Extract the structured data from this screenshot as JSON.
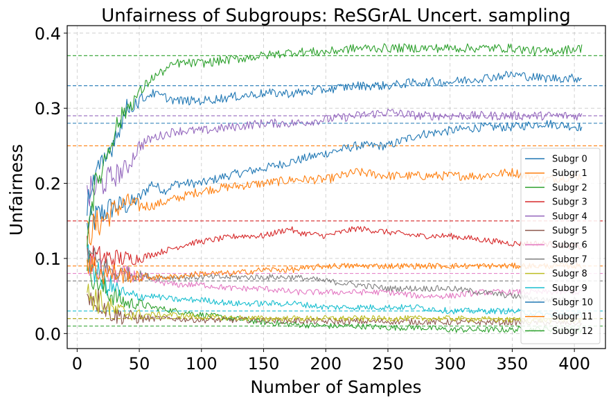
{
  "chart_data": {
    "type": "line",
    "title": "Unfairness of Subgroups: ReSGrAL Uncert. sampling",
    "xlabel": "Number of Samples",
    "ylabel": "Unfairness",
    "xlim": [
      -8,
      425
    ],
    "ylim": [
      -0.02,
      0.41
    ],
    "xticks": [
      0,
      50,
      100,
      150,
      200,
      250,
      300,
      350,
      400
    ],
    "yticks": [
      0.0,
      0.1,
      0.2,
      0.3,
      0.4
    ],
    "xtick_labels": [
      "0",
      "50",
      "100",
      "150",
      "200",
      "250",
      "300",
      "350",
      "400"
    ],
    "ytick_labels": [
      "0.0",
      "0.1",
      "0.2",
      "0.3",
      "0.4"
    ],
    "grid": true,
    "legend_position": "right",
    "series": [
      {
        "name": "Subgr 0",
        "color": "#1f77b4",
        "target": 0.28,
        "points": [
          [
            8,
            0.14
          ],
          [
            12,
            0.15
          ],
          [
            20,
            0.16
          ],
          [
            30,
            0.17
          ],
          [
            40,
            0.17
          ],
          [
            50,
            0.18
          ],
          [
            60,
            0.2
          ],
          [
            70,
            0.19
          ],
          [
            80,
            0.2
          ],
          [
            100,
            0.2
          ],
          [
            120,
            0.21
          ],
          [
            150,
            0.22
          ],
          [
            175,
            0.23
          ],
          [
            200,
            0.24
          ],
          [
            225,
            0.25
          ],
          [
            250,
            0.25
          ],
          [
            275,
            0.265
          ],
          [
            300,
            0.27
          ],
          [
            325,
            0.275
          ],
          [
            350,
            0.275
          ],
          [
            375,
            0.28
          ],
          [
            406,
            0.275
          ]
        ]
      },
      {
        "name": "Subgr 1",
        "color": "#ff7f0e",
        "target": 0.25,
        "points": [
          [
            8,
            0.13
          ],
          [
            12,
            0.14
          ],
          [
            20,
            0.15
          ],
          [
            30,
            0.165
          ],
          [
            40,
            0.175
          ],
          [
            50,
            0.17
          ],
          [
            60,
            0.17
          ],
          [
            80,
            0.18
          ],
          [
            100,
            0.19
          ],
          [
            120,
            0.195
          ],
          [
            150,
            0.2
          ],
          [
            175,
            0.205
          ],
          [
            200,
            0.205
          ],
          [
            225,
            0.215
          ],
          [
            250,
            0.21
          ],
          [
            275,
            0.21
          ],
          [
            300,
            0.21
          ],
          [
            325,
            0.21
          ],
          [
            350,
            0.215
          ],
          [
            375,
            0.205
          ],
          [
            406,
            0.21
          ]
        ]
      },
      {
        "name": "Subgr 2",
        "color": "#2ca02c",
        "target": 0.01,
        "points": [
          [
            8,
            0.1
          ],
          [
            12,
            0.08
          ],
          [
            20,
            0.06
          ],
          [
            30,
            0.05
          ],
          [
            40,
            0.04
          ],
          [
            50,
            0.04
          ],
          [
            60,
            0.035
          ],
          [
            80,
            0.03
          ],
          [
            100,
            0.025
          ],
          [
            125,
            0.02
          ],
          [
            150,
            0.015
          ],
          [
            175,
            0.012
          ],
          [
            200,
            0.01
          ],
          [
            225,
            0.01
          ],
          [
            250,
            0.008
          ],
          [
            275,
            0.008
          ],
          [
            300,
            0.005
          ],
          [
            325,
            0.005
          ],
          [
            350,
            0.005
          ],
          [
            375,
            0.006
          ],
          [
            406,
            0.005
          ]
        ]
      },
      {
        "name": "Subgr 3",
        "color": "#d62728",
        "target": 0.15,
        "points": [
          [
            8,
            0.11
          ],
          [
            12,
            0.1
          ],
          [
            20,
            0.1
          ],
          [
            30,
            0.1
          ],
          [
            50,
            0.1
          ],
          [
            70,
            0.11
          ],
          [
            90,
            0.12
          ],
          [
            110,
            0.125
          ],
          [
            130,
            0.13
          ],
          [
            150,
            0.13
          ],
          [
            172,
            0.14
          ],
          [
            175,
            0.135
          ],
          [
            200,
            0.13
          ],
          [
            225,
            0.14
          ],
          [
            250,
            0.135
          ],
          [
            275,
            0.13
          ],
          [
            300,
            0.13
          ],
          [
            325,
            0.125
          ],
          [
            350,
            0.12
          ],
          [
            375,
            0.12
          ],
          [
            406,
            0.115
          ]
        ]
      },
      {
        "name": "Subgr 4",
        "color": "#9467bd",
        "target": 0.29,
        "points": [
          [
            8,
            0.18
          ],
          [
            12,
            0.19
          ],
          [
            20,
            0.2
          ],
          [
            30,
            0.21
          ],
          [
            40,
            0.22
          ],
          [
            50,
            0.25
          ],
          [
            60,
            0.26
          ],
          [
            80,
            0.27
          ],
          [
            100,
            0.27
          ],
          [
            125,
            0.275
          ],
          [
            150,
            0.28
          ],
          [
            175,
            0.28
          ],
          [
            200,
            0.285
          ],
          [
            225,
            0.29
          ],
          [
            250,
            0.295
          ],
          [
            275,
            0.29
          ],
          [
            300,
            0.29
          ],
          [
            325,
            0.29
          ],
          [
            350,
            0.29
          ],
          [
            375,
            0.29
          ],
          [
            406,
            0.29
          ]
        ]
      },
      {
        "name": "Subgr 5",
        "color": "#8c564b",
        "target": 0.02,
        "points": [
          [
            8,
            0.06
          ],
          [
            12,
            0.05
          ],
          [
            20,
            0.04
          ],
          [
            30,
            0.025
          ],
          [
            50,
            0.02
          ],
          [
            75,
            0.02
          ],
          [
            100,
            0.018
          ],
          [
            150,
            0.018
          ],
          [
            200,
            0.016
          ],
          [
            250,
            0.016
          ],
          [
            300,
            0.015
          ],
          [
            350,
            0.015
          ],
          [
            406,
            0.014
          ]
        ]
      },
      {
        "name": "Subgr 6",
        "color": "#e377c2",
        "target": 0.08,
        "points": [
          [
            8,
            0.1
          ],
          [
            12,
            0.09
          ],
          [
            20,
            0.08
          ],
          [
            30,
            0.075
          ],
          [
            40,
            0.08
          ],
          [
            60,
            0.07
          ],
          [
            80,
            0.065
          ],
          [
            100,
            0.065
          ],
          [
            125,
            0.06
          ],
          [
            150,
            0.06
          ],
          [
            175,
            0.055
          ],
          [
            200,
            0.055
          ],
          [
            225,
            0.055
          ],
          [
            250,
            0.055
          ],
          [
            275,
            0.05
          ],
          [
            300,
            0.05
          ],
          [
            325,
            0.055
          ],
          [
            350,
            0.055
          ],
          [
            375,
            0.055
          ],
          [
            406,
            0.055
          ]
        ]
      },
      {
        "name": "Subgr 7",
        "color": "#7f7f7f",
        "target": 0.07,
        "points": [
          [
            8,
            0.11
          ],
          [
            12,
            0.1
          ],
          [
            20,
            0.09
          ],
          [
            30,
            0.08
          ],
          [
            40,
            0.08
          ],
          [
            60,
            0.075
          ],
          [
            80,
            0.075
          ],
          [
            100,
            0.075
          ],
          [
            125,
            0.075
          ],
          [
            150,
            0.075
          ],
          [
            175,
            0.075
          ],
          [
            200,
            0.07
          ],
          [
            225,
            0.065
          ],
          [
            250,
            0.06
          ],
          [
            275,
            0.06
          ],
          [
            300,
            0.06
          ],
          [
            325,
            0.055
          ],
          [
            350,
            0.05
          ],
          [
            375,
            0.045
          ],
          [
            406,
            0.045
          ]
        ]
      },
      {
        "name": "Subgr 8",
        "color": "#bcbd22",
        "target": 0.02,
        "points": [
          [
            8,
            0.05
          ],
          [
            12,
            0.05
          ],
          [
            20,
            0.04
          ],
          [
            30,
            0.03
          ],
          [
            50,
            0.025
          ],
          [
            75,
            0.025
          ],
          [
            100,
            0.022
          ],
          [
            150,
            0.02
          ],
          [
            200,
            0.02
          ],
          [
            250,
            0.02
          ],
          [
            300,
            0.02
          ],
          [
            350,
            0.018
          ],
          [
            406,
            0.018
          ]
        ]
      },
      {
        "name": "Subgr 9",
        "color": "#17becf",
        "target": 0.03,
        "points": [
          [
            8,
            0.1
          ],
          [
            12,
            0.09
          ],
          [
            20,
            0.07
          ],
          [
            30,
            0.06
          ],
          [
            40,
            0.05
          ],
          [
            60,
            0.05
          ],
          [
            80,
            0.045
          ],
          [
            100,
            0.045
          ],
          [
            125,
            0.04
          ],
          [
            150,
            0.04
          ],
          [
            175,
            0.04
          ],
          [
            200,
            0.035
          ],
          [
            225,
            0.035
          ],
          [
            250,
            0.035
          ],
          [
            275,
            0.035
          ],
          [
            300,
            0.03
          ],
          [
            325,
            0.03
          ],
          [
            350,
            0.03
          ],
          [
            375,
            0.025
          ],
          [
            406,
            0.025
          ]
        ]
      },
      {
        "name": "Subgr 10",
        "color": "#1f77b4",
        "target": 0.33,
        "points": [
          [
            8,
            0.18
          ],
          [
            12,
            0.2
          ],
          [
            20,
            0.22
          ],
          [
            30,
            0.26
          ],
          [
            40,
            0.3
          ],
          [
            50,
            0.31
          ],
          [
            60,
            0.32
          ],
          [
            80,
            0.31
          ],
          [
            100,
            0.31
          ],
          [
            125,
            0.315
          ],
          [
            150,
            0.32
          ],
          [
            175,
            0.32
          ],
          [
            200,
            0.325
          ],
          [
            225,
            0.33
          ],
          [
            250,
            0.33
          ],
          [
            275,
            0.335
          ],
          [
            300,
            0.335
          ],
          [
            325,
            0.34
          ],
          [
            350,
            0.345
          ],
          [
            375,
            0.34
          ],
          [
            406,
            0.34
          ]
        ]
      },
      {
        "name": "Subgr 11",
        "color": "#ff7f0e",
        "target": 0.09,
        "points": [
          [
            8,
            0.1
          ],
          [
            12,
            0.09
          ],
          [
            20,
            0.08
          ],
          [
            30,
            0.08
          ],
          [
            50,
            0.075
          ],
          [
            75,
            0.075
          ],
          [
            100,
            0.08
          ],
          [
            125,
            0.08
          ],
          [
            150,
            0.085
          ],
          [
            175,
            0.085
          ],
          [
            200,
            0.09
          ],
          [
            225,
            0.09
          ],
          [
            250,
            0.09
          ],
          [
            275,
            0.09
          ],
          [
            300,
            0.09
          ],
          [
            325,
            0.09
          ],
          [
            350,
            0.09
          ],
          [
            375,
            0.09
          ],
          [
            406,
            0.09
          ]
        ]
      },
      {
        "name": "Subgr 12",
        "color": "#2ca02c",
        "target": 0.37,
        "points": [
          [
            8,
            0.13
          ],
          [
            12,
            0.18
          ],
          [
            20,
            0.22
          ],
          [
            30,
            0.27
          ],
          [
            40,
            0.3
          ],
          [
            50,
            0.32
          ],
          [
            60,
            0.34
          ],
          [
            70,
            0.35
          ],
          [
            80,
            0.36
          ],
          [
            100,
            0.36
          ],
          [
            125,
            0.365
          ],
          [
            150,
            0.37
          ],
          [
            175,
            0.375
          ],
          [
            200,
            0.375
          ],
          [
            225,
            0.38
          ],
          [
            250,
            0.38
          ],
          [
            275,
            0.38
          ],
          [
            300,
            0.38
          ],
          [
            325,
            0.38
          ],
          [
            350,
            0.38
          ],
          [
            375,
            0.375
          ],
          [
            406,
            0.38
          ]
        ]
      }
    ]
  }
}
